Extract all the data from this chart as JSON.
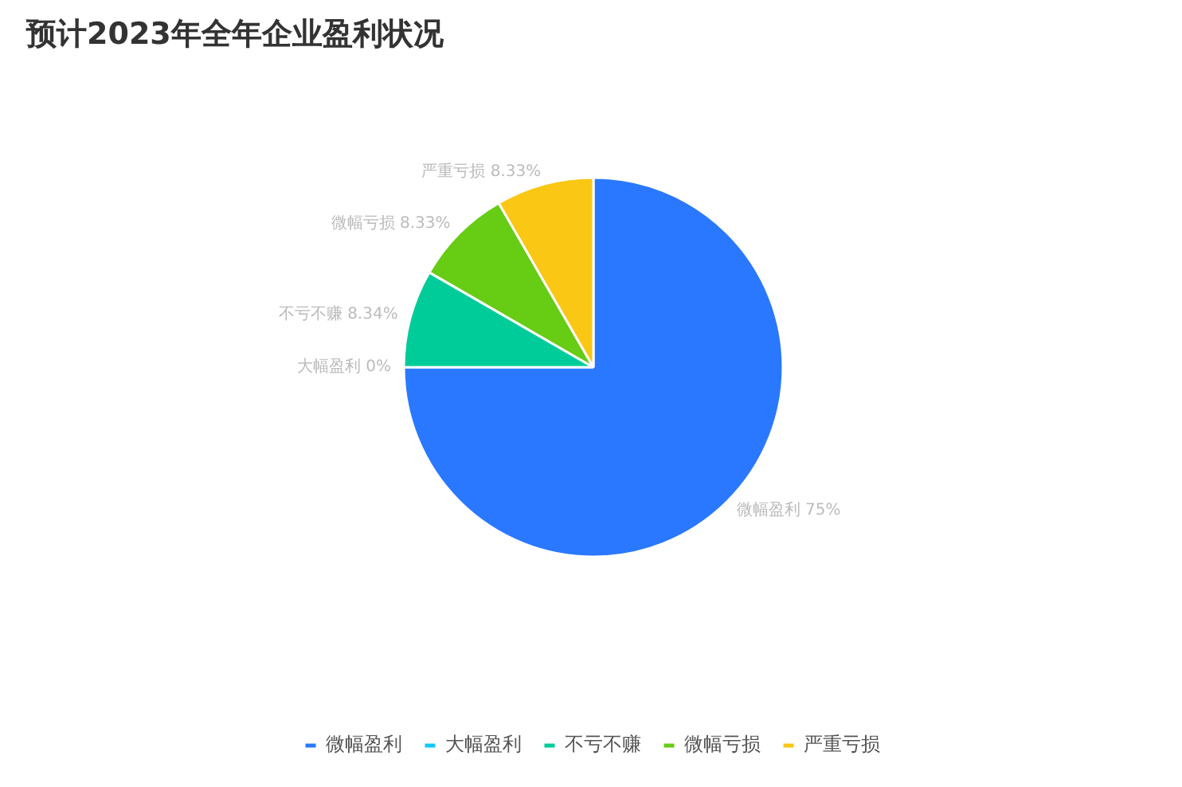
{
  "chart_data": {
    "type": "pie",
    "title": "预计2023年全年企业盈利状况",
    "categories": [
      "微幅盈利",
      "大幅盈利",
      "不亏不赚",
      "微幅亏损",
      "严重亏损"
    ],
    "values": [
      75,
      0,
      8.34,
      8.33,
      8.33
    ],
    "value_labels": [
      "75%",
      "0%",
      "8.34%",
      "8.33%",
      "8.33%"
    ],
    "colors": [
      "#2a78ff",
      "#14c8f5",
      "#00cc99",
      "#66cc14",
      "#f9c714"
    ],
    "legend": "bottom"
  }
}
